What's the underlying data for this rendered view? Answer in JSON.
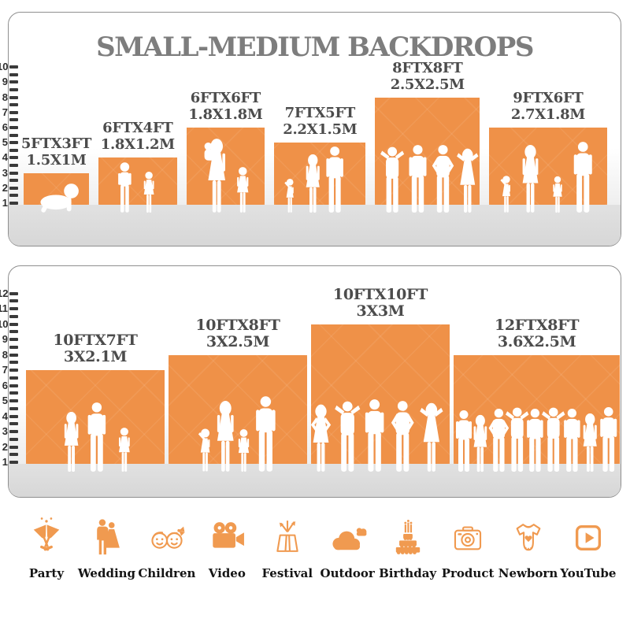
{
  "title": "SMALL-MEDIUM BACKDROPS",
  "colors": {
    "backdrop_orange": "#EF9148",
    "icon_orange": "#F09A50",
    "title_gray": "#7D7D7D",
    "label_gray": "#4C4C4C",
    "ground_gray": "#DCDCDC"
  },
  "chart_data": [
    {
      "type": "bar",
      "title": "SMALL-MEDIUM BACKDROPS",
      "ylabel": "height (feet ruler)",
      "axis_min": 1,
      "axis_max": 10,
      "grid": false,
      "legend": "none",
      "categories": [
        "5FTX3FT",
        "6FTX4FT",
        "6FTX6FT",
        "7FTX5FT",
        "8FTX8FT",
        "9FTX6FT"
      ],
      "metric_labels": [
        "1.5X1M",
        "1.8X1.2M",
        "1.8X1.8M",
        "2.2X1.5M",
        "2.5X2.5M",
        "2.7X1.8M"
      ],
      "width_ft": [
        5,
        6,
        6,
        7,
        8,
        9
      ],
      "values": [
        3,
        4,
        6,
        5,
        8,
        6
      ],
      "figures": [
        [
          [
            "baby",
            40,
            0.54
          ]
        ],
        [
          [
            "boy",
            66,
            0.34
          ],
          [
            "girl",
            54,
            0.64
          ]
        ],
        [
          [
            "mother",
            96,
            0.38
          ],
          [
            "girl",
            60,
            0.72
          ]
        ],
        [
          [
            "toddler",
            46,
            0.17
          ],
          [
            "woman",
            76,
            0.42
          ],
          [
            "man",
            86,
            0.66
          ]
        ],
        [
          [
            "man-up",
            86,
            0.16
          ],
          [
            "man",
            88,
            0.41
          ],
          [
            "man-hips",
            88,
            0.65
          ],
          [
            "woman-up",
            84,
            0.88
          ]
        ],
        [
          [
            "toddler",
            50,
            0.14
          ],
          [
            "woman",
            88,
            0.35
          ],
          [
            "girl",
            48,
            0.58
          ],
          [
            "man",
            92,
            0.8
          ]
        ]
      ]
    },
    {
      "type": "bar",
      "title": "",
      "ylabel": "height (feet ruler)",
      "axis_min": 1,
      "axis_max": 12,
      "grid": false,
      "legend": "none",
      "categories": [
        "10FTX7FT",
        "10FTX8FT",
        "10FTX10FT",
        "12FTX8FT"
      ],
      "metric_labels": [
        "3X2.1M",
        "3X2.5M",
        "3X3M",
        "3.6X2.5M"
      ],
      "width_ft": [
        10,
        10,
        10,
        12
      ],
      "values": [
        7,
        8,
        10,
        8
      ],
      "figures": [
        [
          [
            "woman",
            78,
            0.33
          ],
          [
            "man",
            90,
            0.51
          ],
          [
            "girl",
            58,
            0.71
          ]
        ],
        [
          [
            "toddler",
            58,
            0.26
          ],
          [
            "woman",
            92,
            0.41
          ],
          [
            "girl",
            56,
            0.54
          ],
          [
            "man",
            98,
            0.7
          ]
        ],
        [
          [
            "woman-hips",
            88,
            0.07
          ],
          [
            "man-up",
            92,
            0.26
          ],
          [
            "man",
            94,
            0.46
          ],
          [
            "man-hips",
            92,
            0.66
          ],
          [
            "woman-up",
            90,
            0.87
          ]
        ],
        [
          [
            "man",
            80,
            0.06
          ],
          [
            "woman",
            74,
            0.16
          ],
          [
            "man-hips",
            82,
            0.27
          ],
          [
            "man-up",
            84,
            0.38
          ],
          [
            "man",
            82,
            0.49
          ],
          [
            "man-up",
            84,
            0.6
          ],
          [
            "man",
            82,
            0.71
          ],
          [
            "woman",
            76,
            0.82
          ],
          [
            "man",
            84,
            0.93
          ]
        ]
      ]
    }
  ],
  "icons": [
    {
      "name": "party-icon",
      "label": "Party",
      "glyph": "party"
    },
    {
      "name": "wedding-icon",
      "label": "Wedding",
      "glyph": "wedding"
    },
    {
      "name": "children-icon",
      "label": "Children",
      "glyph": "children"
    },
    {
      "name": "video-icon",
      "label": "Video",
      "glyph": "video"
    },
    {
      "name": "festival-icon",
      "label": "Festival",
      "glyph": "festival"
    },
    {
      "name": "outdoor-icon",
      "label": "Outdoor",
      "glyph": "outdoor"
    },
    {
      "name": "birthday-icon",
      "label": "Birthday",
      "glyph": "birthday"
    },
    {
      "name": "product-icon",
      "label": "Product",
      "glyph": "product"
    },
    {
      "name": "newborn-icon",
      "label": "Newborn",
      "glyph": "newborn"
    },
    {
      "name": "youtube-icon",
      "label": "YouTube",
      "glyph": "youtube"
    }
  ]
}
